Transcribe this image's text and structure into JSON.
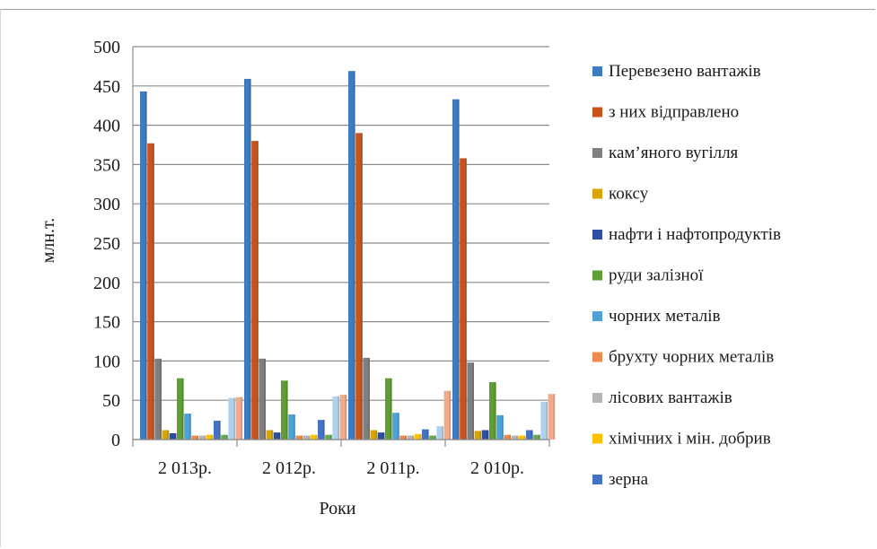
{
  "chart_data": {
    "type": "bar",
    "title": "",
    "xlabel": "Роки",
    "ylabel": "млн.т.",
    "ylim": [
      0,
      500
    ],
    "yticks": [
      0,
      50,
      100,
      150,
      200,
      250,
      300,
      350,
      400,
      450,
      500
    ],
    "grid": true,
    "legend_position": "right",
    "categories": [
      "2 013р.",
      "2 012р.",
      "2 011р.",
      "2 010р."
    ],
    "series": [
      {
        "name": "Перевезено вантажів",
        "color": "#3d7cc0",
        "values": [
          443,
          459,
          469,
          433
        ]
      },
      {
        "name": "з них відправлено",
        "color": "#c8541c",
        "values": [
          377,
          380,
          390,
          358
        ]
      },
      {
        "name": "кам’яного вугілля",
        "color": "#7f7f7f",
        "values": [
          103,
          103,
          104,
          98
        ]
      },
      {
        "name": "коксу",
        "color": "#d9a400",
        "values": [
          12,
          12,
          12,
          11
        ]
      },
      {
        "name": "нафти і нафтопродуктів",
        "color": "#2c4fa3",
        "values": [
          8,
          9,
          9,
          12
        ]
      },
      {
        "name": "руди залізної",
        "color": "#5e9e32",
        "values": [
          78,
          75,
          78,
          73
        ]
      },
      {
        "name": "чорних металів",
        "color": "#4ea1d8",
        "values": [
          33,
          32,
          34,
          31
        ]
      },
      {
        "name": "брухту чорних металів",
        "color": "#ef8a4e",
        "values": [
          5,
          5,
          5,
          6
        ]
      },
      {
        "name": "лісових вантажів",
        "color": "#b5b5b5",
        "values": [
          5,
          5,
          5,
          5
        ]
      },
      {
        "name": "хімічних і мін. добрив",
        "color": "#ffc000",
        "values": [
          6,
          6,
          7,
          5
        ]
      },
      {
        "name": "зерна",
        "color": "#4472c4",
        "values": [
          24,
          25,
          13,
          12
        ]
      },
      {
        "name": "",
        "color": "#6aa84f",
        "values": [
          6,
          6,
          5,
          6
        ]
      },
      {
        "name": "",
        "color": "#aed2ee",
        "values": [
          53,
          55,
          17,
          48
        ]
      },
      {
        "name": "",
        "color": "#f2aa8a",
        "values": [
          54,
          57,
          62,
          58
        ]
      }
    ]
  }
}
